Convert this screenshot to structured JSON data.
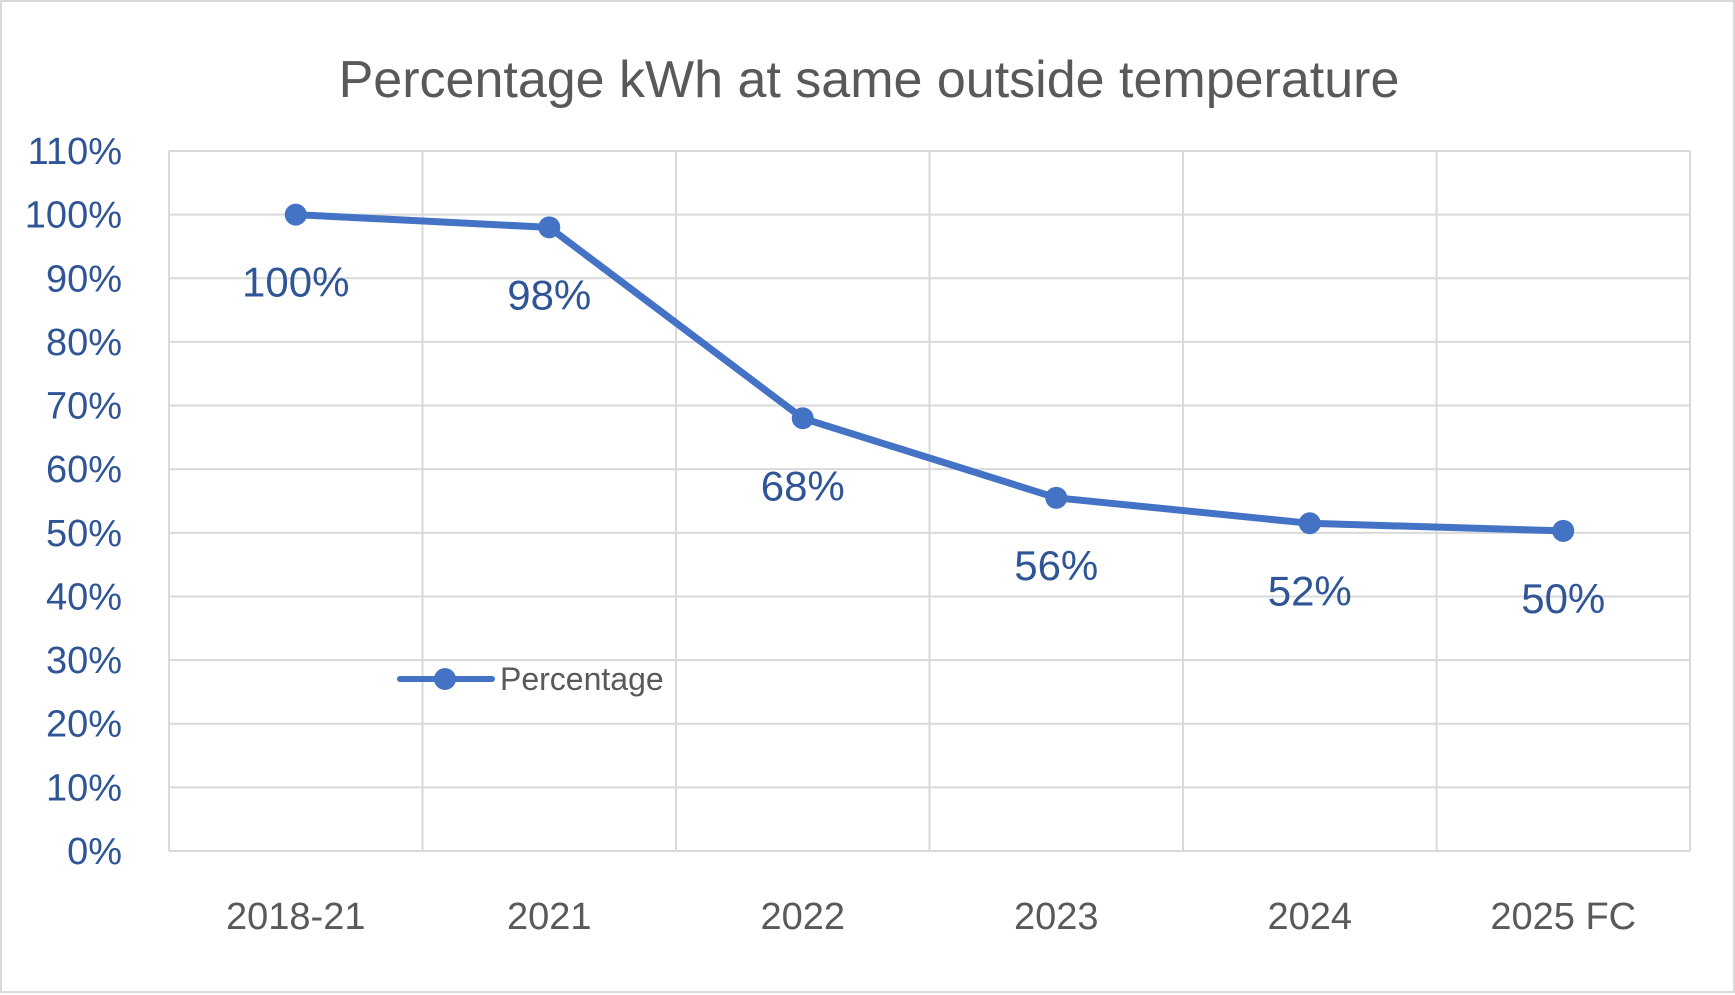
{
  "chart_data": {
    "type": "line",
    "title": "Percentage kWh at same outside temperature",
    "xlabel": "",
    "ylabel": "",
    "categories": [
      "2018-21",
      "2021",
      "2022",
      "2023",
      "2024",
      "2025 FC"
    ],
    "series": [
      {
        "name": "Percentage",
        "values": [
          100,
          98,
          68,
          55.5,
          51.5,
          50.3
        ],
        "data_labels": [
          "100%",
          "98%",
          "68%",
          "56%",
          "52%",
          "50%"
        ],
        "color": "#4472c4"
      }
    ],
    "ylim": [
      0,
      110
    ],
    "yticks": [
      0,
      10,
      20,
      30,
      40,
      50,
      60,
      70,
      80,
      90,
      100,
      110
    ],
    "ytick_labels": [
      "0%",
      "10%",
      "20%",
      "30%",
      "40%",
      "50%",
      "60%",
      "70%",
      "80%",
      "90%",
      "100%",
      "110%"
    ],
    "grid": true,
    "legend": {
      "position": "inside-lower-left",
      "entries": [
        "Percentage"
      ]
    },
    "colors": {
      "series": "#4472c4",
      "grid": "#d9d9d9",
      "title": "#595959",
      "axis_labels": "#2f5597",
      "category_labels": "#595959"
    }
  }
}
